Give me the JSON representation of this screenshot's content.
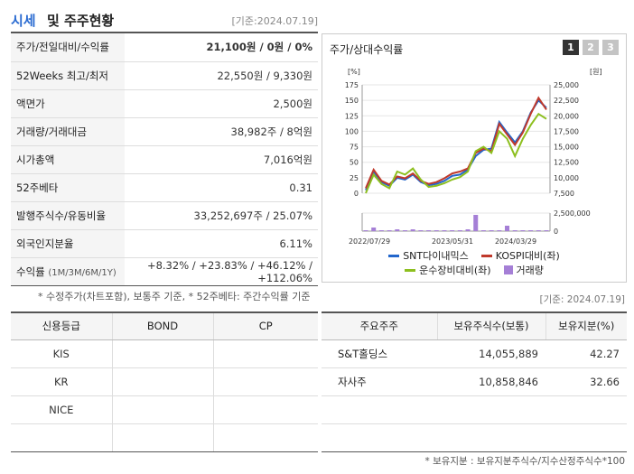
{
  "header": {
    "title_accent": "시세",
    "title_rest": "및 주주현황",
    "date": "[기준:2024.07.19]"
  },
  "info_rows": [
    {
      "label": "주가/전일대비/수익률",
      "value": "21,100원 / 0원 / 0%"
    },
    {
      "label": "52Weeks 최고/최저",
      "value": "22,550원 / 9,330원"
    },
    {
      "label": "액면가",
      "value": "2,500원"
    },
    {
      "label": "거래량/거래대금",
      "value": "38,982주 / 8억원"
    },
    {
      "label": "시가총액",
      "value": "7,016억원"
    },
    {
      "label": "52주베타",
      "value": "0.31"
    },
    {
      "label": "발행주식수/유동비율",
      "value": "33,252,697주 / 25.07%"
    },
    {
      "label": "외국인지분율",
      "value": "6.11%"
    }
  ],
  "return_row": {
    "label": "수익률",
    "periods": "(1M/3M/6M/1Y)",
    "value": "+8.32% / +23.83% / +46.12% / +112.06%"
  },
  "note1": "* 수정주가(차트포함), 보통주 기준, * 52주베타: 주간수익률 기준",
  "date2": "[기준: 2024.07.19]",
  "chart": {
    "title": "주가/상대수익률",
    "pages": [
      "1",
      "2",
      "3"
    ],
    "left_unit": "[%]",
    "right_unit": "[원]"
  },
  "chart_data": {
    "type": "line",
    "x_labels": [
      "2022/07/29",
      "2023/05/31",
      "2024/03/29"
    ],
    "y_left_ticks": [
      "175",
      "150",
      "125",
      "100",
      "75",
      "50",
      "25",
      "0"
    ],
    "y_right_ticks": [
      "25,000",
      "22,500",
      "20,000",
      "17,500",
      "15,000",
      "12,500",
      "10,000",
      "7,500"
    ],
    "volume_ticks": [
      "2,500,000",
      "0"
    ],
    "ylim_left": [
      0,
      175
    ],
    "series": [
      {
        "name": "SNT다이내믹스",
        "color": "#2266cc",
        "values": [
          5,
          35,
          18,
          12,
          25,
          22,
          30,
          18,
          13,
          15,
          20,
          28,
          30,
          38,
          60,
          70,
          72,
          115,
          98,
          82,
          100,
          130,
          150,
          138
        ]
      },
      {
        "name": "KOSPI대비(좌)",
        "color": "#c0392b",
        "values": [
          8,
          38,
          20,
          14,
          27,
          24,
          32,
          20,
          15,
          18,
          24,
          32,
          35,
          40,
          65,
          72,
          68,
          112,
          95,
          78,
          98,
          128,
          154,
          135
        ]
      },
      {
        "name": "운수장비대비(좌)",
        "color": "#8dbf1f",
        "values": [
          0,
          30,
          15,
          8,
          35,
          30,
          40,
          22,
          10,
          12,
          16,
          22,
          26,
          35,
          68,
          75,
          65,
          100,
          88,
          60,
          88,
          110,
          128,
          120
        ]
      }
    ],
    "volume": {
      "name": "거래량",
      "color": "#a57fd6",
      "values": [
        0.05,
        0.2,
        0.05,
        0.05,
        0.1,
        0.05,
        0.1,
        0.05,
        0.05,
        0.05,
        0.05,
        0.05,
        0.05,
        0.1,
        0.9,
        0.05,
        0.05,
        0.05,
        0.3,
        0.05,
        0.05,
        0.05,
        0.05,
        0.05
      ],
      "max": 2500000
    }
  },
  "legend": {
    "items": [
      {
        "label": "SNT다이내믹스",
        "color": "#2266cc"
      },
      {
        "label": "KOSPI대비(좌)",
        "color": "#c0392b"
      },
      {
        "label": "운수장비대비(좌)",
        "color": "#8dbf1f"
      },
      {
        "label": "거래량",
        "color": "#a57fd6"
      }
    ]
  },
  "credit": {
    "headers": [
      "신용등급",
      "BOND",
      "CP"
    ],
    "rows": [
      [
        "KIS",
        "",
        ""
      ],
      [
        "KR",
        "",
        ""
      ],
      [
        "NICE",
        "",
        ""
      ],
      [
        "",
        "",
        ""
      ]
    ]
  },
  "share": {
    "headers": [
      "주요주주",
      "보유주식수(보통)",
      "보유지분(%)"
    ],
    "rows": [
      [
        "S&T홀딩스",
        "14,055,889",
        "42.27"
      ],
      [
        "자사주",
        "10,858,846",
        "32.66"
      ],
      [
        "",
        "",
        ""
      ],
      [
        "",
        "",
        ""
      ]
    ]
  },
  "note2": "* 보유지분 : 보유지분주식수/지수산정주식수*100"
}
